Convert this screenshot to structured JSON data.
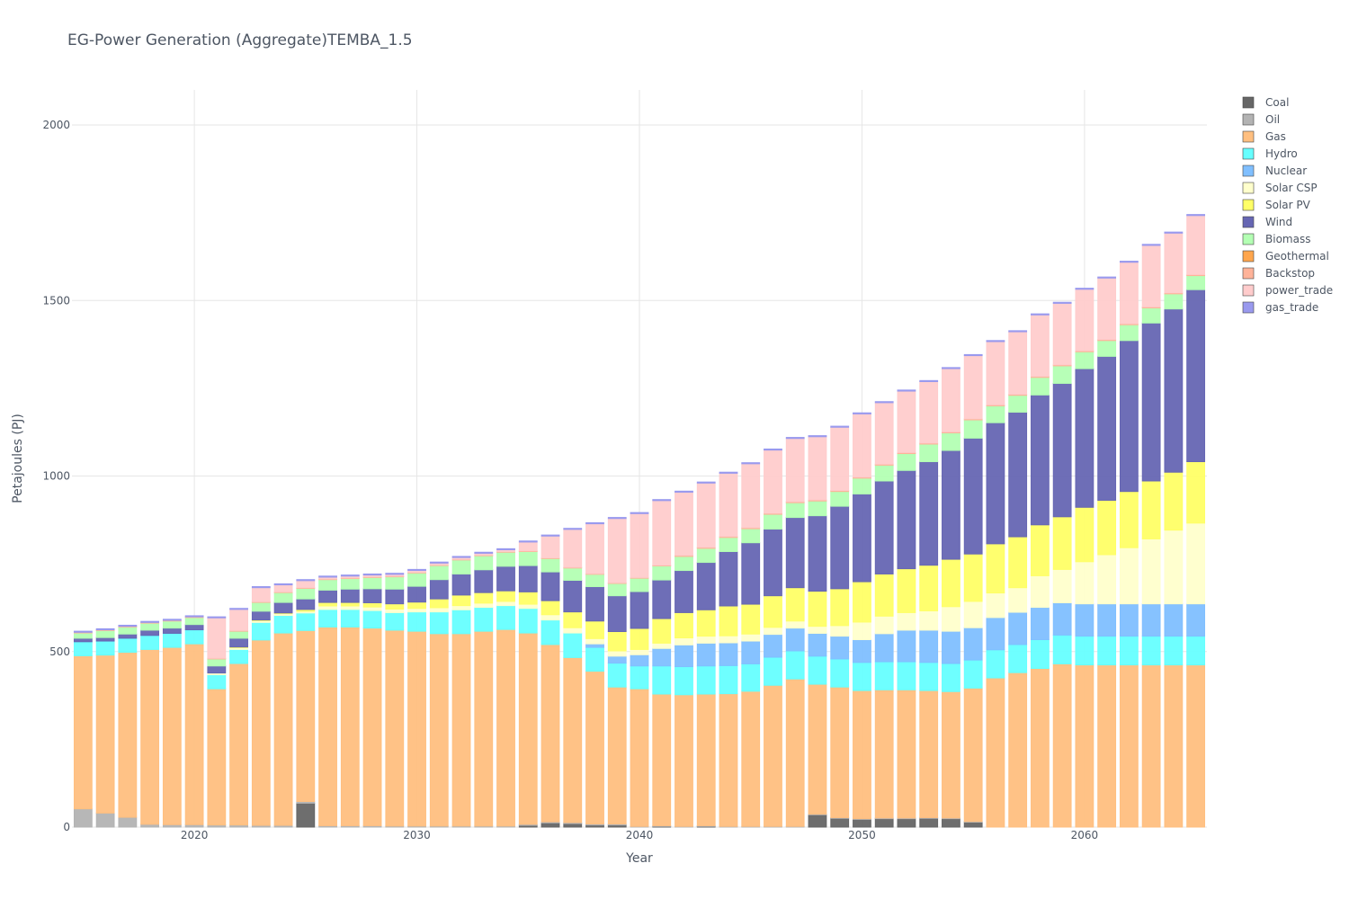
{
  "chart_data": {
    "type": "bar",
    "stacked": true,
    "title": "EG-Power Generation (Aggregate)TEMBA_1.5",
    "xlabel": "Year",
    "ylabel": "Petajoules (PJ)",
    "xlim": [
      2014.5,
      2065.5
    ],
    "ylim": [
      0,
      2100
    ],
    "x_ticks": [
      2020,
      2030,
      2040,
      2050,
      2060
    ],
    "y_ticks": [
      0,
      500,
      1000,
      1500,
      2000
    ],
    "grid": true,
    "legend_position": "right",
    "x": [
      2015,
      2016,
      2017,
      2018,
      2019,
      2020,
      2021,
      2022,
      2023,
      2024,
      2025,
      2026,
      2027,
      2028,
      2029,
      2030,
      2031,
      2032,
      2033,
      2034,
      2035,
      2036,
      2037,
      2038,
      2039,
      2040,
      2041,
      2042,
      2043,
      2044,
      2045,
      2046,
      2047,
      2048,
      2049,
      2050,
      2051,
      2052,
      2053,
      2054,
      2055,
      2056,
      2057,
      2058,
      2059,
      2060,
      2061,
      2062,
      2063,
      2064,
      2065
    ],
    "series": [
      {
        "name": "Coal",
        "color": "#666666",
        "values": [
          0,
          0,
          0,
          0,
          0,
          0,
          0,
          0,
          0,
          0,
          68,
          0,
          0,
          0,
          0,
          0,
          0,
          0,
          0,
          0,
          5,
          12,
          10,
          6,
          6,
          0,
          2,
          0,
          2,
          0,
          0,
          0,
          0,
          35,
          25,
          22,
          24,
          24,
          25,
          24,
          14,
          0,
          0,
          0,
          0,
          0,
          0,
          0,
          0,
          0,
          0
        ]
      },
      {
        "name": "Oil",
        "color": "#b3b3b3",
        "values": [
          52,
          40,
          28,
          8,
          7,
          7,
          6,
          6,
          5,
          5,
          5,
          4,
          4,
          4,
          3,
          3,
          3,
          3,
          3,
          3,
          3,
          3,
          3,
          3,
          3,
          2,
          2,
          2,
          2,
          2,
          2,
          2,
          2,
          2,
          2,
          2,
          2,
          2,
          2,
          2,
          2,
          0,
          0,
          0,
          0,
          0,
          0,
          0,
          0,
          0,
          0
        ]
      },
      {
        "name": "Gas",
        "color": "#ffbf80",
        "values": [
          436,
          450,
          470,
          498,
          505,
          515,
          388,
          460,
          528,
          548,
          487,
          566,
          566,
          563,
          558,
          555,
          548,
          548,
          555,
          560,
          545,
          505,
          470,
          435,
          390,
          392,
          375,
          375,
          375,
          378,
          385,
          402,
          420,
          370,
          372,
          365,
          365,
          365,
          362,
          360,
          380,
          425,
          440,
          452,
          465,
          462,
          462,
          462,
          462,
          462,
          462
        ]
      },
      {
        "name": "Hydro",
        "color": "#66ffff",
        "values": [
          40,
          40,
          40,
          40,
          40,
          40,
          40,
          40,
          50,
          50,
          50,
          50,
          50,
          50,
          50,
          55,
          62,
          68,
          68,
          68,
          70,
          70,
          70,
          68,
          68,
          65,
          80,
          80,
          80,
          80,
          78,
          80,
          80,
          80,
          80,
          80,
          80,
          80,
          80,
          80,
          80,
          80,
          80,
          82,
          82,
          82,
          82,
          82,
          82,
          82,
          82
        ]
      },
      {
        "name": "Nuclear",
        "color": "#80bfff",
        "values": [
          0,
          0,
          0,
          0,
          0,
          0,
          0,
          0,
          0,
          0,
          0,
          0,
          0,
          0,
          0,
          0,
          0,
          0,
          0,
          0,
          0,
          0,
          0,
          10,
          20,
          32,
          50,
          62,
          65,
          65,
          65,
          65,
          65,
          65,
          65,
          65,
          80,
          90,
          92,
          92,
          92,
          92,
          92,
          92,
          92,
          92,
          92,
          92,
          92,
          92,
          92
        ]
      },
      {
        "name": "Solar CSP",
        "color": "#ffffcc",
        "values": [
          0,
          0,
          0,
          0,
          0,
          0,
          5,
          5,
          5,
          5,
          5,
          10,
          10,
          10,
          10,
          10,
          12,
          12,
          12,
          12,
          12,
          15,
          15,
          15,
          15,
          15,
          15,
          20,
          20,
          20,
          20,
          20,
          20,
          20,
          30,
          50,
          50,
          50,
          55,
          70,
          75,
          70,
          70,
          90,
          95,
          120,
          140,
          160,
          185,
          210,
          230
        ]
      },
      {
        "name": "Solar PV",
        "color": "#ffff66",
        "values": [
          0,
          0,
          0,
          0,
          0,
          0,
          0,
          2,
          2,
          2,
          5,
          10,
          10,
          12,
          15,
          18,
          25,
          30,
          30,
          30,
          35,
          40,
          45,
          50,
          55,
          60,
          70,
          72,
          75,
          85,
          85,
          90,
          95,
          100,
          105,
          115,
          120,
          125,
          130,
          135,
          135,
          140,
          145,
          145,
          150,
          155,
          155,
          160,
          165,
          165,
          175
        ]
      },
      {
        "name": "Wind",
        "color": "#6666b3",
        "values": [
          10,
          10,
          12,
          15,
          15,
          15,
          20,
          25,
          25,
          30,
          30,
          35,
          38,
          40,
          42,
          45,
          55,
          60,
          65,
          70,
          75,
          82,
          90,
          98,
          102,
          105,
          110,
          120,
          135,
          155,
          175,
          190,
          200,
          215,
          235,
          250,
          265,
          280,
          295,
          310,
          330,
          345,
          355,
          370,
          380,
          395,
          410,
          430,
          450,
          465,
          490
        ]
      },
      {
        "name": "Biomass",
        "color": "#b3ffb3",
        "values": [
          15,
          20,
          20,
          20,
          20,
          20,
          20,
          20,
          25,
          28,
          30,
          30,
          30,
          32,
          35,
          38,
          40,
          40,
          40,
          40,
          40,
          38,
          35,
          35,
          35,
          38,
          40,
          40,
          40,
          40,
          40,
          42,
          42,
          42,
          42,
          45,
          45,
          48,
          50,
          50,
          52,
          48,
          48,
          50,
          50,
          48,
          45,
          45,
          43,
          43,
          40
        ]
      },
      {
        "name": "Geothermal",
        "color": "#ffa64d",
        "values": [
          0,
          0,
          0,
          0,
          0,
          0,
          0,
          0,
          0,
          0,
          0,
          0,
          0,
          0,
          0,
          0,
          0,
          0,
          0,
          0,
          0,
          0,
          0,
          0,
          0,
          0,
          0,
          0,
          0,
          0,
          0,
          0,
          0,
          0,
          0,
          0,
          0,
          0,
          0,
          0,
          0,
          0,
          0,
          0,
          0,
          0,
          0,
          0,
          0,
          0,
          0
        ]
      },
      {
        "name": "Backstop",
        "color": "#ffb399",
        "values": [
          2,
          2,
          2,
          2,
          2,
          2,
          2,
          2,
          2,
          2,
          2,
          2,
          2,
          2,
          2,
          2,
          2,
          2,
          2,
          2,
          2,
          2,
          2,
          2,
          2,
          2,
          2,
          3,
          3,
          3,
          3,
          3,
          3,
          3,
          3,
          3,
          3,
          3,
          3,
          3,
          3,
          3,
          3,
          3,
          3,
          3,
          3,
          3,
          3,
          3,
          3
        ]
      },
      {
        "name": "power_trade",
        "color": "#ffcccc",
        "values": [
          0,
          0,
          0,
          0,
          0,
          0,
          115,
          60,
          40,
          20,
          20,
          5,
          5,
          5,
          5,
          5,
          5,
          5,
          5,
          5,
          25,
          62,
          108,
          142,
          183,
          182,
          184,
          180,
          183,
          180,
          182,
          180,
          180,
          180,
          180,
          180,
          175,
          175,
          175,
          180,
          180,
          180,
          178,
          175,
          175,
          175,
          175,
          175,
          175,
          170,
          168
        ]
      },
      {
        "name": "gas_trade",
        "color": "#9999ee",
        "values": [
          3,
          3,
          3,
          3,
          3,
          3,
          3,
          3,
          3,
          3,
          3,
          3,
          3,
          3,
          3,
          3,
          3,
          3,
          3,
          3,
          3,
          3,
          3,
          3,
          3,
          3,
          3,
          3,
          3,
          3,
          3,
          3,
          3,
          3,
          3,
          3,
          3,
          3,
          3,
          3,
          3,
          3,
          3,
          3,
          3,
          3,
          3,
          3,
          3,
          3,
          3
        ]
      }
    ]
  }
}
